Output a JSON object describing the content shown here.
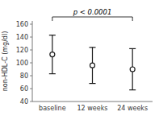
{
  "chart_data": {
    "type": "errorbar",
    "categories": [
      "baseline",
      "12 weeks",
      "24 weeks"
    ],
    "values": [
      113,
      96,
      90
    ],
    "errors": [
      30,
      28,
      32
    ],
    "color": "#1a1a1a",
    "marker": "circle",
    "ylabel": "non-HDL-C (mg/dl)",
    "ylim": [
      40,
      165
    ],
    "yticks": [
      40,
      60,
      80,
      100,
      120,
      140,
      160
    ],
    "annotation": "p < 0.0001",
    "grid": false
  }
}
